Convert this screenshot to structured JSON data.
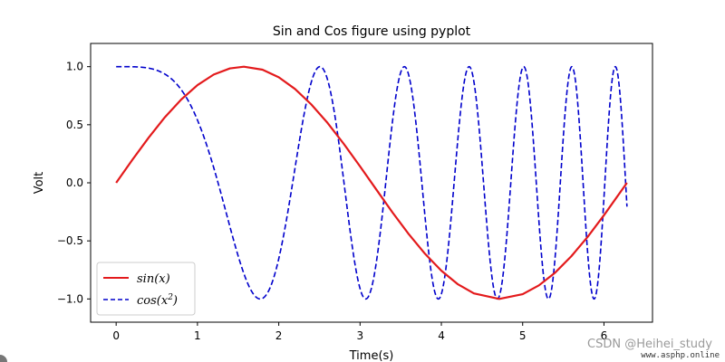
{
  "chart_data": {
    "type": "line",
    "title": "Sin and Cos figure using pyplot",
    "xlabel": "Time(s)",
    "ylabel": "Volt",
    "xlim": [
      -0.314,
      6.597
    ],
    "ylim": [
      -1.2,
      1.2
    ],
    "xticks": [
      0,
      1,
      2,
      3,
      4,
      5,
      6
    ],
    "xtick_labels": [
      "0",
      "1",
      "2",
      "3",
      "4",
      "5",
      "6"
    ],
    "yticks": [
      -1.0,
      -0.5,
      0.0,
      0.5,
      1.0
    ],
    "ytick_labels": [
      "−1.0",
      "−0.5",
      "0.0",
      "0.5",
      "1.0"
    ],
    "legend_position": "lower-left",
    "series": [
      {
        "name": "sin(x)",
        "legend_label_main": "sin(x)",
        "color": "#e31a1c",
        "linestyle": "solid",
        "x": [
          0.0,
          0.2,
          0.4,
          0.6,
          0.8,
          1.0,
          1.2,
          1.4,
          1.571,
          1.8,
          2.0,
          2.2,
          2.4,
          2.6,
          2.8,
          3.0,
          3.2,
          3.4,
          3.6,
          3.8,
          4.0,
          4.2,
          4.4,
          4.712,
          5.0,
          5.2,
          5.4,
          5.6,
          5.8,
          6.0,
          6.283
        ],
        "y": [
          0.0,
          0.199,
          0.389,
          0.565,
          0.717,
          0.841,
          0.932,
          0.985,
          1.0,
          0.974,
          0.909,
          0.808,
          0.675,
          0.516,
          0.335,
          0.141,
          -0.058,
          -0.256,
          -0.443,
          -0.612,
          -0.757,
          -0.872,
          -0.952,
          -1.0,
          -0.959,
          -0.883,
          -0.773,
          -0.631,
          -0.465,
          -0.279,
          0.0
        ]
      },
      {
        "name": "cos(x^2)",
        "legend_label_base": "cos(x",
        "legend_label_sup": "2",
        "legend_label_end": ")",
        "color": "#0000cc",
        "linestyle": "dashed",
        "x_range": [
          0,
          6.283
        ],
        "points": 2000,
        "formula": "cos(x^2)"
      }
    ]
  },
  "watermark": {
    "main": "CSDN @Heihei_study",
    "small": "www.asphp.online"
  }
}
